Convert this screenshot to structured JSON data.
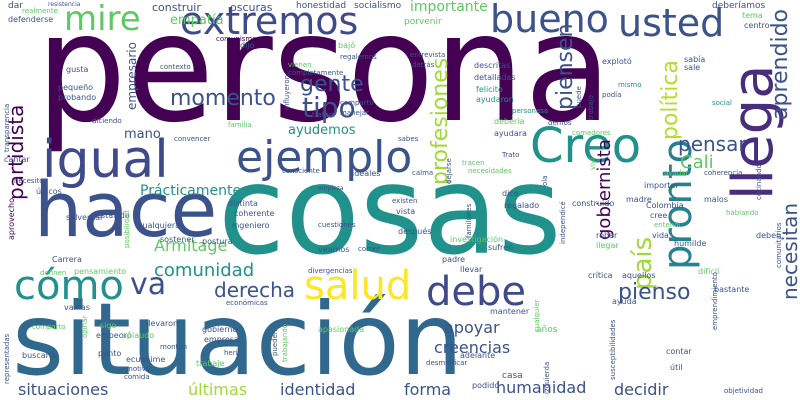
{
  "background": "#ffffff",
  "palette": [
    "#440154",
    "#3b528b",
    "#21918c",
    "#5ec962",
    "#fde725"
  ],
  "words": [
    {
      "text": "persona",
      "color": "#440154"
    },
    {
      "text": "cosas",
      "color": "#21918c"
    },
    {
      "text": "situación",
      "color": "#31688e"
    },
    {
      "text": "hace",
      "color": "#3b528b"
    },
    {
      "text": "igual",
      "color": "#3e4a89"
    },
    {
      "text": "ejemplo",
      "color": "#3b528b"
    },
    {
      "text": "extremos",
      "color": "#3e4a89"
    },
    {
      "text": "bueno",
      "color": "#3b528b"
    },
    {
      "text": "usted",
      "color": "#3b528b"
    },
    {
      "text": "mire",
      "color": "#5ec962"
    },
    {
      "text": "Creo",
      "color": "#21918c"
    },
    {
      "text": "llega",
      "color": "#472d7b"
    },
    {
      "text": "pronto",
      "color": "#26828e"
    },
    {
      "text": "cómo",
      "color": "#21918c"
    },
    {
      "text": "va",
      "color": "#3b528b"
    },
    {
      "text": "debe",
      "color": "#3e4a89"
    },
    {
      "text": "salud",
      "color": "#fde725"
    },
    {
      "text": "gente",
      "color": "#3b528b"
    },
    {
      "text": "tipo",
      "color": "#3b528b"
    },
    {
      "text": "momento",
      "color": "#3b528b"
    },
    {
      "text": "partidista",
      "color": "#440154"
    },
    {
      "text": "profesiones",
      "color": "#a0da39"
    },
    {
      "text": "piensen",
      "color": "#3b528b"
    },
    {
      "text": "política",
      "color": "#b5de2b"
    },
    {
      "text": "aprendido",
      "color": "#3b528b"
    },
    {
      "text": "pensar",
      "color": "#3b528b"
    },
    {
      "text": "Cali",
      "color": "#5ec962"
    },
    {
      "text": "país",
      "color": "#a0da39"
    },
    {
      "text": "necesitan",
      "color": "#3b528b"
    },
    {
      "text": "gobiernista",
      "color": "#440154"
    },
    {
      "text": "pienso",
      "color": "#3b528b"
    },
    {
      "text": "derecha",
      "color": "#3b528b"
    },
    {
      "text": "comunidad",
      "color": "#21918c"
    },
    {
      "text": "Armitage",
      "color": "#5ec962"
    },
    {
      "text": "Prácticamente",
      "color": "#21918c"
    },
    {
      "text": "apoyar",
      "color": "#3b528b"
    },
    {
      "text": "creencias",
      "color": "#3b528b"
    },
    {
      "text": "situaciones",
      "color": "#3b528b"
    },
    {
      "text": "últimas",
      "color": "#a0da39"
    },
    {
      "text": "identidad",
      "color": "#3b528b"
    },
    {
      "text": "forma",
      "color": "#3b528b"
    },
    {
      "text": "humanidad",
      "color": "#3b528b"
    },
    {
      "text": "decidir",
      "color": "#3b528b"
    },
    {
      "text": "empatía",
      "color": "#5ec962"
    },
    {
      "text": "importante",
      "color": "#5ec962"
    },
    {
      "text": "ayudemos",
      "color": "#21918c"
    },
    {
      "text": "mano",
      "color": "#3b528b"
    },
    {
      "text": "empresario",
      "color": "#3b528b"
    },
    {
      "text": "construir",
      "color": "#3b528b"
    },
    {
      "text": "oscuras",
      "color": "#3b528b"
    },
    {
      "text": "honestidad",
      "color": "#3b528b"
    },
    {
      "text": "socialismo",
      "color": "#3b528b"
    },
    {
      "text": "porvenir",
      "color": "#5ec962"
    },
    {
      "text": "deberíamos",
      "color": "#3b528b"
    },
    {
      "text": "dar",
      "color": "#3b528b"
    },
    {
      "text": "defenderse",
      "color": "#3b528b"
    },
    {
      "text": "realmente",
      "color": "#5ec962"
    },
    {
      "text": "tema",
      "color": "#5ec962"
    },
    {
      "text": "centro",
      "color": "#3b528b"
    },
    {
      "text": "comunismo",
      "color": "#440154"
    },
    {
      "text": "dijo",
      "color": "#3b528b"
    },
    {
      "text": "bajó",
      "color": "#5ec962"
    },
    {
      "text": "entrevista",
      "color": "#3b528b"
    },
    {
      "text": "descritas",
      "color": "#3b528b"
    },
    {
      "text": "sabía",
      "color": "#3b528b"
    },
    {
      "text": "explotó",
      "color": "#3b528b"
    },
    {
      "text": "sale",
      "color": "#3b528b"
    },
    {
      "text": "detalladas",
      "color": "#3b528b"
    },
    {
      "text": "podía",
      "color": "#3b528b"
    },
    {
      "text": "mismo",
      "color": "#21918c"
    },
    {
      "text": "felicito",
      "color": "#21918c"
    },
    {
      "text": "ayudaron",
      "color": "#21918c"
    },
    {
      "text": "puede",
      "color": "#3b528b"
    },
    {
      "text": "trabajo",
      "color": "#3b528b"
    },
    {
      "text": "personasa",
      "color": "#21918c"
    },
    {
      "text": "social",
      "color": "#21918c"
    },
    {
      "text": "gusta",
      "color": "#3b528b"
    },
    {
      "text": "contexto",
      "color": "#3b528b"
    },
    {
      "text": "vienen",
      "color": "#5ec962"
    },
    {
      "text": "regalemos",
      "color": "#3b528b"
    },
    {
      "text": "completamente",
      "color": "#3b528b"
    },
    {
      "text": "detrás",
      "color": "#3b528b"
    },
    {
      "text": "compartir",
      "color": "#3b528b"
    },
    {
      "text": "manejar",
      "color": "#3b528b"
    },
    {
      "text": "pequeño",
      "color": "#3b528b"
    },
    {
      "text": "probando",
      "color": "#3b528b"
    },
    {
      "text": "influyeron",
      "color": "#3b528b"
    },
    {
      "text": "tratan",
      "color": "#3b528b"
    },
    {
      "text": "diciendo",
      "color": "#3b528b"
    },
    {
      "text": "familia",
      "color": "#5ec962"
    },
    {
      "text": "convencer",
      "color": "#3b528b"
    },
    {
      "text": "sabes",
      "color": "#3b528b"
    },
    {
      "text": "debería",
      "color": "#5ec962"
    },
    {
      "text": "ayudara",
      "color": "#3b528b"
    },
    {
      "text": "demos",
      "color": "#3b528b"
    },
    {
      "text": "comedores",
      "color": "#5ec962"
    },
    {
      "text": "viví",
      "color": "#5ec962"
    },
    {
      "text": "cantar",
      "color": "#3b528b"
    },
    {
      "text": "transparencia",
      "color": "#3b528b"
    },
    {
      "text": "necesito",
      "color": "#3b528b"
    },
    {
      "text": "únicos",
      "color": "#3b528b"
    },
    {
      "text": "consciente",
      "color": "#3b528b"
    },
    {
      "text": "ideales",
      "color": "#3b528b"
    },
    {
      "text": "calma",
      "color": "#3b528b"
    },
    {
      "text": "dejarse",
      "color": "#3b528b"
    },
    {
      "text": "necesidades",
      "color": "#5ec962"
    },
    {
      "text": "tracen",
      "color": "#5ec962"
    },
    {
      "text": "Trato",
      "color": "#3b528b"
    },
    {
      "text": "ola",
      "color": "#3b528b"
    },
    {
      "text": "ayudar",
      "color": "#5ec962"
    },
    {
      "text": "coherencia",
      "color": "#3b528b"
    },
    {
      "text": "cocinando",
      "color": "#3b528b"
    },
    {
      "text": "importar",
      "color": "#3b528b"
    },
    {
      "text": "empieza",
      "color": "#3b528b"
    },
    {
      "text": "aprovecho",
      "color": "#440154"
    },
    {
      "text": "solventar",
      "color": "#3b528b"
    },
    {
      "text": "estallido",
      "color": "#3b528b"
    },
    {
      "text": "distinta",
      "color": "#3b528b"
    },
    {
      "text": "coherente",
      "color": "#3b528b"
    },
    {
      "text": "ingeniero",
      "color": "#3b528b"
    },
    {
      "text": "cuestiones",
      "color": "#3b528b"
    },
    {
      "text": "cualquiera",
      "color": "#3b528b"
    },
    {
      "text": "vista",
      "color": "#3b528b"
    },
    {
      "text": "existen",
      "color": "#3b528b"
    },
    {
      "text": "dice",
      "color": "#3b528b"
    },
    {
      "text": "regalado",
      "color": "#3b528b"
    },
    {
      "text": "construido",
      "color": "#3b528b"
    },
    {
      "text": "familiares",
      "color": "#3b528b"
    },
    {
      "text": "independicé",
      "color": "#3b528b"
    },
    {
      "text": "posibilidad",
      "color": "#5ec962"
    },
    {
      "text": "sostener",
      "color": "#3b528b"
    },
    {
      "text": "postura",
      "color": "#3b528b"
    },
    {
      "text": "después",
      "color": "#3b528b"
    },
    {
      "text": "investigación",
      "color": "#5ec962"
    },
    {
      "text": "madre",
      "color": "#3b528b"
    },
    {
      "text": "Colombia",
      "color": "#3b528b"
    },
    {
      "text": "cree",
      "color": "#3b528b"
    },
    {
      "text": "entendí",
      "color": "#5ec962"
    },
    {
      "text": "malos",
      "color": "#3b528b"
    },
    {
      "text": "hablando",
      "color": "#5ec962"
    },
    {
      "text": "robar",
      "color": "#3b528b"
    },
    {
      "text": "llegar",
      "color": "#5ec962"
    },
    {
      "text": "vida",
      "color": "#3b528b"
    },
    {
      "text": "humilde",
      "color": "#3b528b"
    },
    {
      "text": "deben",
      "color": "#3b528b"
    },
    {
      "text": "comunitarios",
      "color": "#3b528b"
    },
    {
      "text": "Carrera",
      "color": "#3b528b"
    },
    {
      "text": "definen",
      "color": "#5ec962"
    },
    {
      "text": "pensamiento",
      "color": "#5ec962"
    },
    {
      "text": "veamos",
      "color": "#3b528b"
    },
    {
      "text": "comer",
      "color": "#3b528b"
    },
    {
      "text": "divergencias",
      "color": "#3b528b"
    },
    {
      "text": "llevar",
      "color": "#3b528b"
    },
    {
      "text": "padre",
      "color": "#3b528b"
    },
    {
      "text": "sufren",
      "color": "#3b528b"
    },
    {
      "text": "crítica",
      "color": "#3b528b"
    },
    {
      "text": "aquellos",
      "color": "#3b528b"
    },
    {
      "text": "difícil",
      "color": "#5ec962"
    },
    {
      "text": "económicas",
      "color": "#3b528b"
    },
    {
      "text": "vainas",
      "color": "#3b528b"
    },
    {
      "text": "sigo",
      "color": "#5ec962"
    },
    {
      "text": "empeoró",
      "color": "#3b528b"
    },
    {
      "text": "llevaron",
      "color": "#3b528b"
    },
    {
      "text": "apasionada",
      "color": "#5ec962"
    },
    {
      "text": "desmitificar",
      "color": "#3b528b"
    },
    {
      "text": "ayuda",
      "color": "#3b528b"
    },
    {
      "text": "resistencia",
      "color": "#3b528b"
    },
    {
      "text": "comparto",
      "color": "#5ec962"
    },
    {
      "text": "opinar",
      "color": "#5ec962"
    },
    {
      "text": "aplaudo",
      "color": "#5ec962"
    },
    {
      "text": "gobierno",
      "color": "#3b528b"
    },
    {
      "text": "empresa",
      "color": "#3b528b"
    },
    {
      "text": "pueden",
      "color": "#3b528b"
    },
    {
      "text": "trabajando",
      "color": "#5ec962"
    },
    {
      "text": "cualquier",
      "color": "#5ec962"
    },
    {
      "text": "años",
      "color": "#5ec962"
    },
    {
      "text": "emprendimiento",
      "color": "#3b528b"
    },
    {
      "text": "susceptibilidades",
      "color": "#3b528b"
    },
    {
      "text": "bastante",
      "color": "#3b528b"
    },
    {
      "text": "representadas",
      "color": "#3b528b"
    },
    {
      "text": "buscarlo",
      "color": "#3b528b"
    },
    {
      "text": "punto",
      "color": "#3b528b"
    },
    {
      "text": "ecuánime",
      "color": "#3b528b"
    },
    {
      "text": "motivo",
      "color": "#3b528b"
    },
    {
      "text": "comida",
      "color": "#3b528b"
    },
    {
      "text": "montón",
      "color": "#3b528b"
    },
    {
      "text": "herir",
      "color": "#3b528b"
    },
    {
      "text": "trabaje",
      "color": "#5ec962"
    },
    {
      "text": "mantener",
      "color": "#3b528b"
    },
    {
      "text": "adelante",
      "color": "#3b528b"
    },
    {
      "text": "podido",
      "color": "#3b528b"
    },
    {
      "text": "izquierda",
      "color": "#3b528b"
    },
    {
      "text": "contar",
      "color": "#3b528b"
    },
    {
      "text": "útil",
      "color": "#3b528b"
    },
    {
      "text": "objetividad",
      "color": "#3b528b"
    },
    {
      "text": "casa",
      "color": "#3b528b"
    }
  ]
}
